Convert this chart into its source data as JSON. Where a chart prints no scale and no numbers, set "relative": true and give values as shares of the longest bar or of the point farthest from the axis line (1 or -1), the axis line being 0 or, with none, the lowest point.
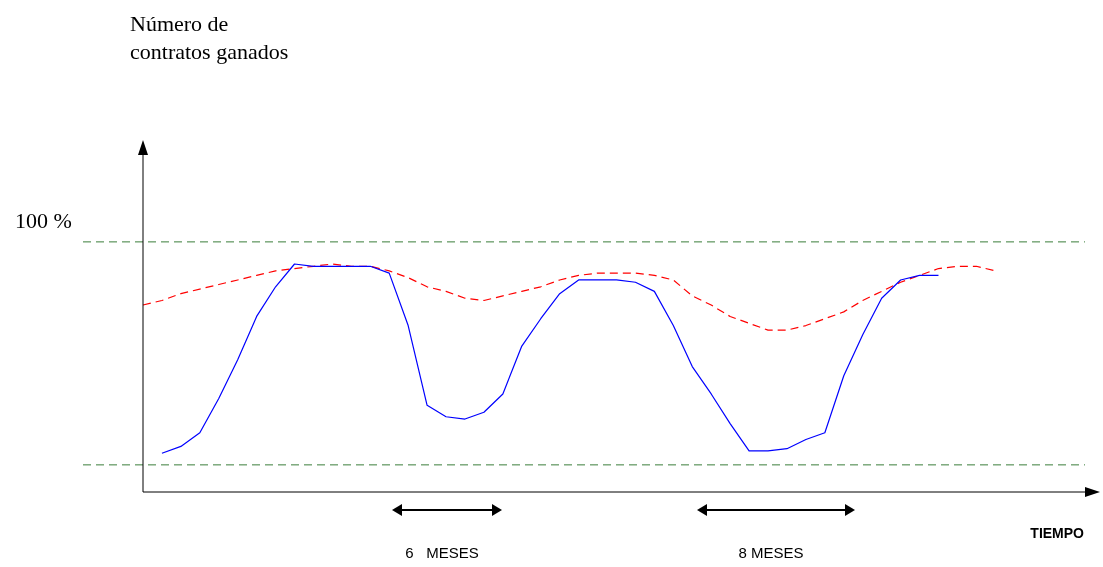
{
  "chart_data": {
    "type": "line",
    "relative": true,
    "xlabel": "TIEMPO",
    "categories": [
      null,
      null,
      null,
      null,
      null,
      null,
      null,
      null,
      null,
      null,
      null,
      null,
      null,
      null,
      null,
      null,
      null,
      null,
      null,
      null,
      null,
      null,
      null,
      null,
      null,
      null,
      null,
      null,
      null,
      null,
      null,
      null,
      null,
      null,
      null,
      null,
      null,
      null,
      null,
      null,
      null,
      null,
      null,
      null,
      null,
      null,
      null,
      null,
      null,
      null,
      null
    ],
    "series": [
      {
        "color": "#0000ff",
        "line_style": "solid",
        "values": [
          null,
          0.17,
          0.2,
          0.26,
          0.41,
          0.58,
          0.77,
          0.9,
          1.0,
          0.99,
          0.99,
          0.99,
          0.99,
          0.96,
          0.73,
          0.38,
          0.33,
          0.32,
          0.35,
          0.43,
          0.64,
          0.76,
          0.87,
          0.93,
          0.93,
          0.93,
          0.92,
          0.88,
          0.73,
          0.55,
          0.43,
          0.3,
          0.18,
          0.18,
          0.19,
          0.23,
          0.26,
          0.51,
          0.69,
          0.85,
          0.93,
          0.95,
          0.95,
          null,
          null,
          null,
          null,
          null,
          null,
          null,
          null
        ]
      },
      {
        "color": "#ff0000",
        "line_style": "dashed",
        "values": [
          0.82,
          0.84,
          0.87,
          0.89,
          0.91,
          0.93,
          0.95,
          0.97,
          0.98,
          0.99,
          1.0,
          0.99,
          0.99,
          0.97,
          0.94,
          0.9,
          0.88,
          0.85,
          0.84,
          0.86,
          0.88,
          0.9,
          0.93,
          0.95,
          0.96,
          0.96,
          0.96,
          0.95,
          0.93,
          0.86,
          0.82,
          0.77,
          0.74,
          0.71,
          0.71,
          0.73,
          0.76,
          0.79,
          0.84,
          0.88,
          0.92,
          0.95,
          0.98,
          0.99,
          0.99,
          0.97,
          null,
          null,
          null,
          null,
          null
        ]
      }
    ],
    "ref_lines": [
      {
        "axis": "y",
        "value": 1.097,
        "color": "#3a7d3a",
        "line_style": "dashed"
      },
      {
        "axis": "y",
        "value": 0.119,
        "color": "#3a7d3a",
        "line_style": "dashed"
      }
    ],
    "annotations": [
      "Número de contratos ganados",
      "100 %",
      "6   MESES",
      "8 MESES"
    ]
  }
}
